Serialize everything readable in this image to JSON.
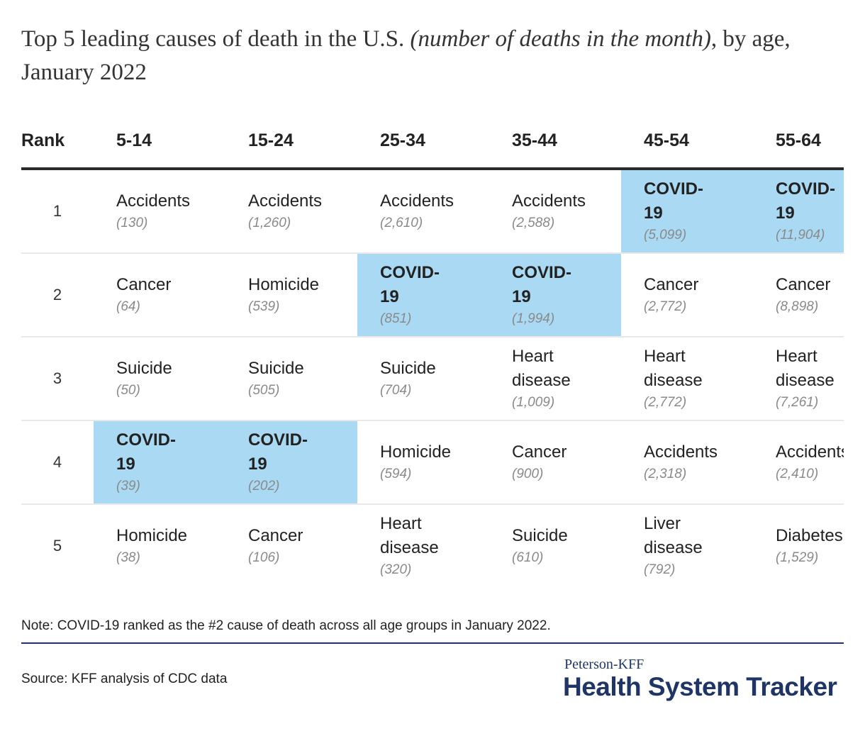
{
  "title": {
    "main": "Top 5 leading causes of death in the U.S. ",
    "italic": "(number of deaths in the month)",
    "rest": ", by age, January 2022"
  },
  "chart_data": {
    "type": "table",
    "columns": [
      "Rank",
      "5-14",
      "15-24",
      "25-34",
      "35-44",
      "45-54",
      "55-64"
    ],
    "highlight_color": "#aadaf3",
    "highlighted_cause": "COVID-19",
    "rows": [
      {
        "rank": "1",
        "cells": [
          {
            "cause": "Accidents",
            "count": "(130)"
          },
          {
            "cause": "Accidents",
            "count": "(1,260)"
          },
          {
            "cause": "Accidents",
            "count": "(2,610)"
          },
          {
            "cause": "Accidents",
            "count": "(2,588)"
          },
          {
            "cause": "COVID-19",
            "count": "(5,099)"
          },
          {
            "cause": "COVID-19",
            "count": "(11,904)"
          }
        ]
      },
      {
        "rank": "2",
        "cells": [
          {
            "cause": "Cancer",
            "count": "(64)"
          },
          {
            "cause": "Homicide",
            "count": "(539)"
          },
          {
            "cause": "COVID-19",
            "count": "(851)"
          },
          {
            "cause": "COVID-19",
            "count": "(1,994)"
          },
          {
            "cause": "Cancer",
            "count": "(2,772)"
          },
          {
            "cause": "Cancer",
            "count": "(8,898)"
          }
        ]
      },
      {
        "rank": "3",
        "cells": [
          {
            "cause": "Suicide",
            "count": "(50)"
          },
          {
            "cause": "Suicide",
            "count": "(505)"
          },
          {
            "cause": "Suicide",
            "count": "(704)"
          },
          {
            "cause": "Heart disease",
            "count": "(1,009)"
          },
          {
            "cause": "Heart disease",
            "count": "(2,772)"
          },
          {
            "cause": "Heart disease",
            "count": "(7,261)"
          }
        ]
      },
      {
        "rank": "4",
        "cells": [
          {
            "cause": "COVID-19",
            "count": "(39)"
          },
          {
            "cause": "COVID-19",
            "count": "(202)"
          },
          {
            "cause": "Homicide",
            "count": "(594)"
          },
          {
            "cause": "Cancer",
            "count": "(900)"
          },
          {
            "cause": "Accidents",
            "count": "(2,318)"
          },
          {
            "cause": "Accidents",
            "count": "(2,410)"
          }
        ]
      },
      {
        "rank": "5",
        "cells": [
          {
            "cause": "Homicide",
            "count": "(38)"
          },
          {
            "cause": "Cancer",
            "count": "(106)"
          },
          {
            "cause": "Heart disease",
            "count": "(320)"
          },
          {
            "cause": "Suicide",
            "count": "(610)"
          },
          {
            "cause": "Liver disease",
            "count": "(792)"
          },
          {
            "cause": "Diabetes",
            "count": "(1,529)"
          }
        ]
      }
    ]
  },
  "note": "Note: COVID-19 ranked as the #2 cause of death across all age groups in January 2022.",
  "source": "Source: KFF analysis of CDC data",
  "logo": {
    "top": "Peterson-KFF",
    "main": "Health System Tracker",
    "color": "#1e3566"
  }
}
